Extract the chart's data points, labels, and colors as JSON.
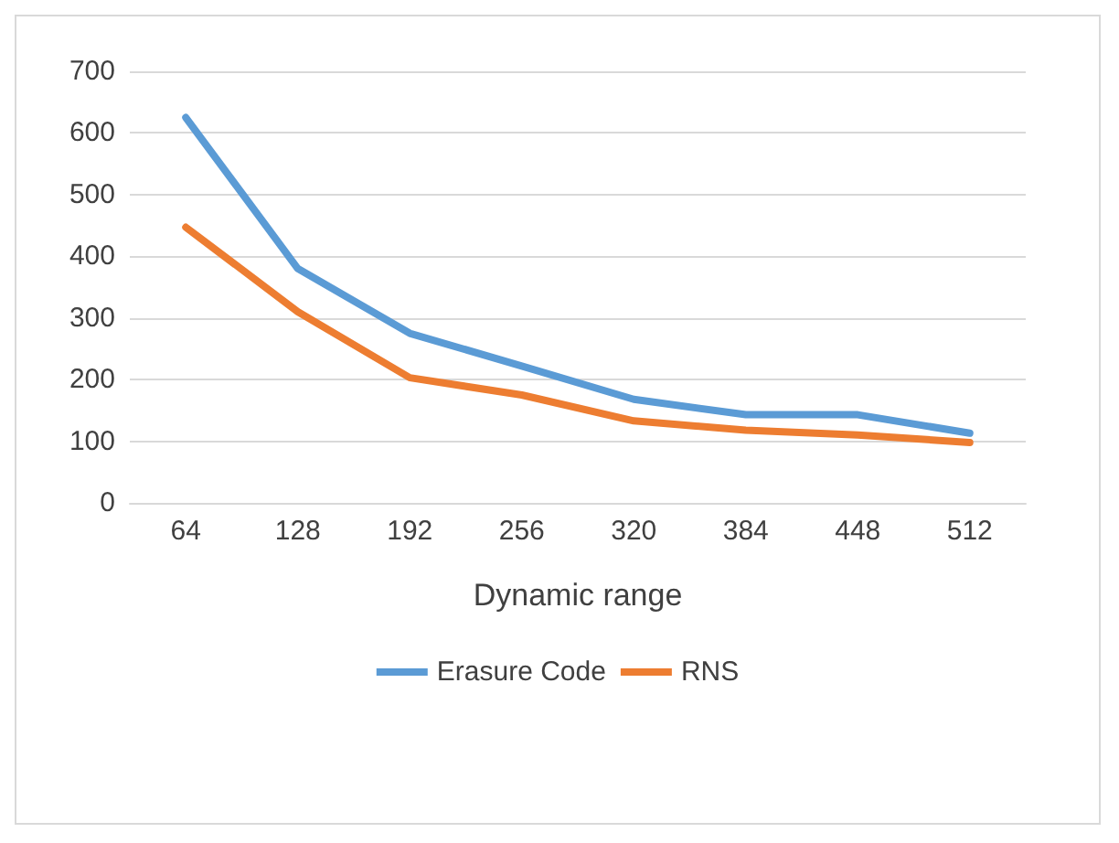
{
  "chart_data": {
    "type": "line",
    "xlabel": "Dynamic range",
    "categories": [
      "64",
      "128",
      "192",
      "256",
      "320",
      "384",
      "448",
      "512"
    ],
    "series": [
      {
        "name": "Erasure Code",
        "color": "#5b9bd5",
        "values": [
          625,
          380,
          275,
          222,
          168,
          143,
          143,
          113
        ]
      },
      {
        "name": "RNS",
        "color": "#ed7d31",
        "values": [
          447,
          310,
          203,
          175,
          133,
          118,
          110,
          98
        ]
      }
    ],
    "ylim": [
      0,
      700
    ],
    "yticks": [
      0,
      100,
      200,
      300,
      400,
      500,
      600,
      700
    ],
    "grid": "y",
    "legend": "bottom",
    "marker": "none",
    "line_style": "solid"
  }
}
